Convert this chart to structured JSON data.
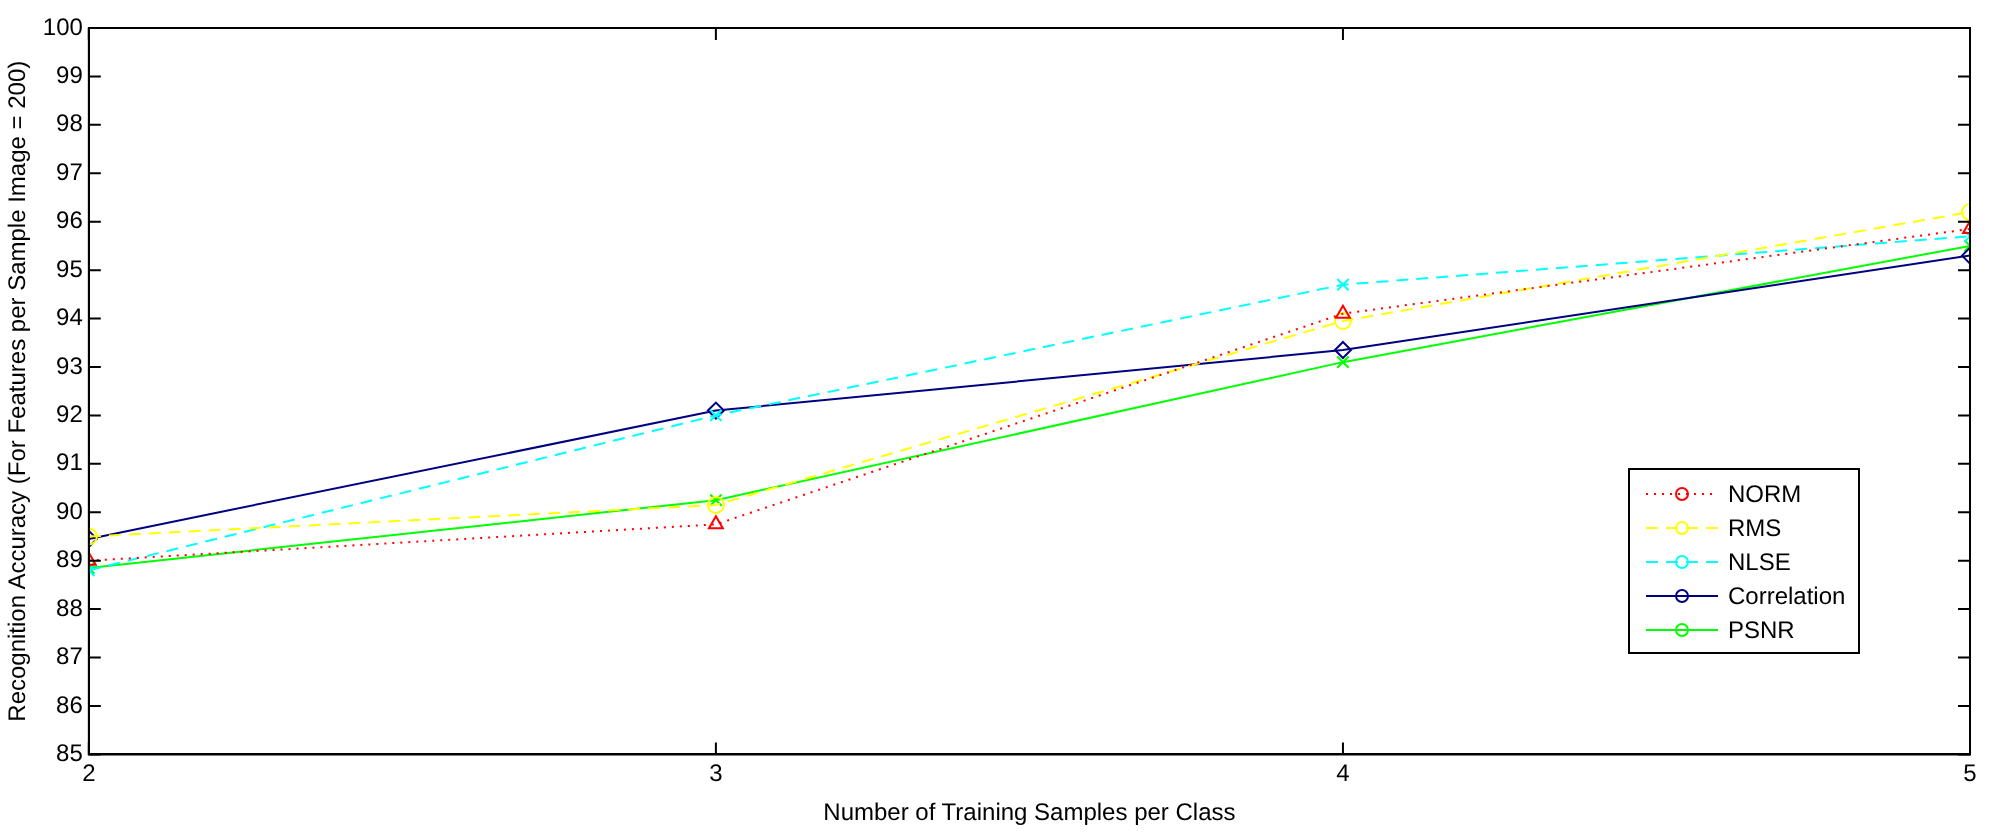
{
  "chart_data": {
    "type": "line",
    "xlabel": "Number of Training Samples per Class",
    "ylabel": "Recognition Accuracy (For Features per Sample Image = 200)",
    "x": [
      2,
      3,
      4,
      5
    ],
    "series": [
      {
        "name": "NORM",
        "color": "#ff0000",
        "marker": "triangle",
        "line_style": "dotted",
        "values": [
          89.0,
          89.75,
          94.1,
          95.85
        ]
      },
      {
        "name": "RMS",
        "color": "#ffff00",
        "marker": "circle",
        "line_style": "dashed",
        "values": [
          89.5,
          90.15,
          93.95,
          96.2
        ]
      },
      {
        "name": "NLSE",
        "color": "#00ffff",
        "marker": "cross",
        "line_style": "dashed",
        "values": [
          88.8,
          92.0,
          94.7,
          95.7
        ]
      },
      {
        "name": "Correlation",
        "color": "#000080",
        "marker": "diamond",
        "line_style": "solid",
        "values": [
          89.45,
          92.1,
          93.35,
          95.3
        ]
      },
      {
        "name": "PSNR",
        "color": "#00ff00",
        "marker": "cross",
        "line_style": "solid",
        "values": [
          88.85,
          90.25,
          93.1,
          95.5
        ]
      }
    ],
    "xlim": [
      2,
      5
    ],
    "xticks": [
      2,
      3,
      4,
      5
    ],
    "ylim": [
      85,
      100
    ],
    "yticks": [
      85,
      86,
      87,
      88,
      89,
      90,
      91,
      92,
      93,
      94,
      95,
      96,
      97,
      98,
      99,
      100
    ],
    "grid": false,
    "legend": "bottom right"
  }
}
